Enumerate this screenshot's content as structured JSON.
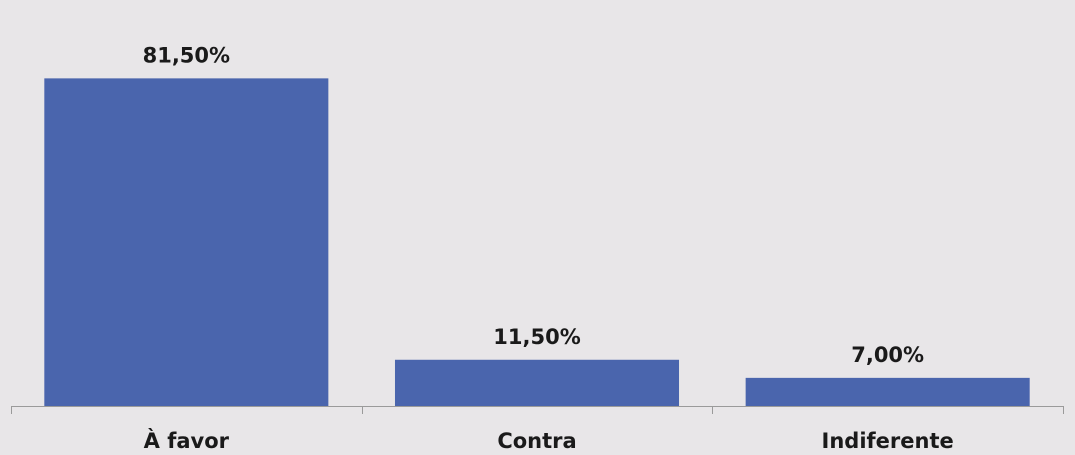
{
  "chart_data": {
    "type": "bar",
    "categories": [
      "À favor",
      "Contra",
      "Indiferente"
    ],
    "values": [
      81.5,
      11.5,
      7.0
    ],
    "data_labels": [
      "81,50%",
      "11,50%",
      "7,00%"
    ],
    "title": "",
    "xlabel": "",
    "ylabel": "",
    "ylim": [
      0,
      100
    ],
    "grid": false,
    "legend": "none",
    "colors": {
      "bar": "#4a65ad",
      "background": "#e8e6e8",
      "axis": "#9a9a9a",
      "text": "#1a1a1a"
    }
  }
}
